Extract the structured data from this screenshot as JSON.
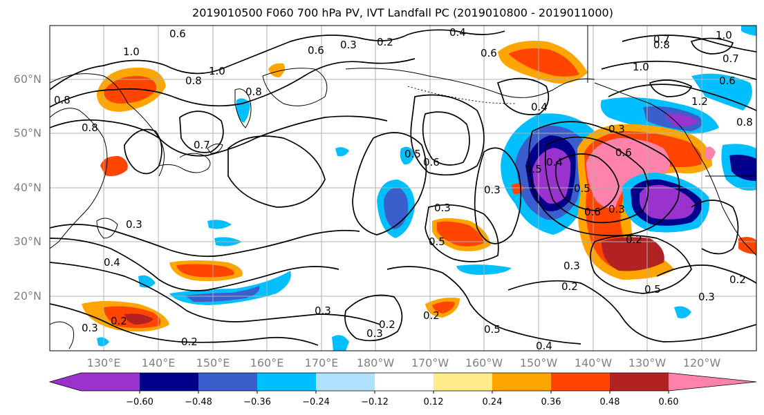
{
  "title": "2019010500 F060 700 hPa PV, IVT Landfall PC (2019010800 - 2019011000)",
  "lat_labels": [
    "60°N",
    "50°N",
    "40°N",
    "30°N",
    "20°N"
  ],
  "lon_labels": [
    "130°E",
    "140°E",
    "150°E",
    "160°E",
    "170°E",
    "180°W",
    "170°W",
    "160°W",
    "150°W",
    "140°W",
    "130°W",
    "120°W"
  ],
  "colorbar": {
    "colors": [
      "#9a32cd",
      "#00008b",
      "#3a5fcd",
      "#00bfff",
      "#b0e2ff",
      "#ffffff",
      "#ffec8b",
      "#ffa500",
      "#ff4500",
      "#b22222",
      "#ff82ab"
    ],
    "tick_labels": [
      "−0.60",
      "−0.48",
      "−0.36",
      "−0.24",
      "−0.12",
      "0.12",
      "0.24",
      "0.36",
      "0.48",
      "0.60"
    ]
  },
  "contour_labels": [
    "0.6",
    "1.0",
    "0.8",
    "1.0",
    "0.8",
    "0.6",
    "0.3",
    "0.2",
    "0.4",
    "0.6",
    "0.7",
    "1.0",
    "0.8",
    "0.7",
    "0.6",
    "1.0",
    "1.2",
    "0.4",
    "0.8",
    "0.7",
    "0.5",
    "0.6",
    "0.8",
    "0.8",
    "0.3",
    "0.6",
    "0.4",
    "0.5",
    "0.6",
    "0.3",
    "0.5",
    "0.3",
    "0.3",
    "0.2",
    "0.5",
    "0.2",
    "0.3",
    "0.2",
    "0.3",
    "0.5",
    "0.4",
    "0.3",
    "0.2",
    "0.2",
    "0.3",
    "0.2",
    "0.2",
    "0.5",
    "0.3",
    "0.4",
    "0.3"
  ]
}
